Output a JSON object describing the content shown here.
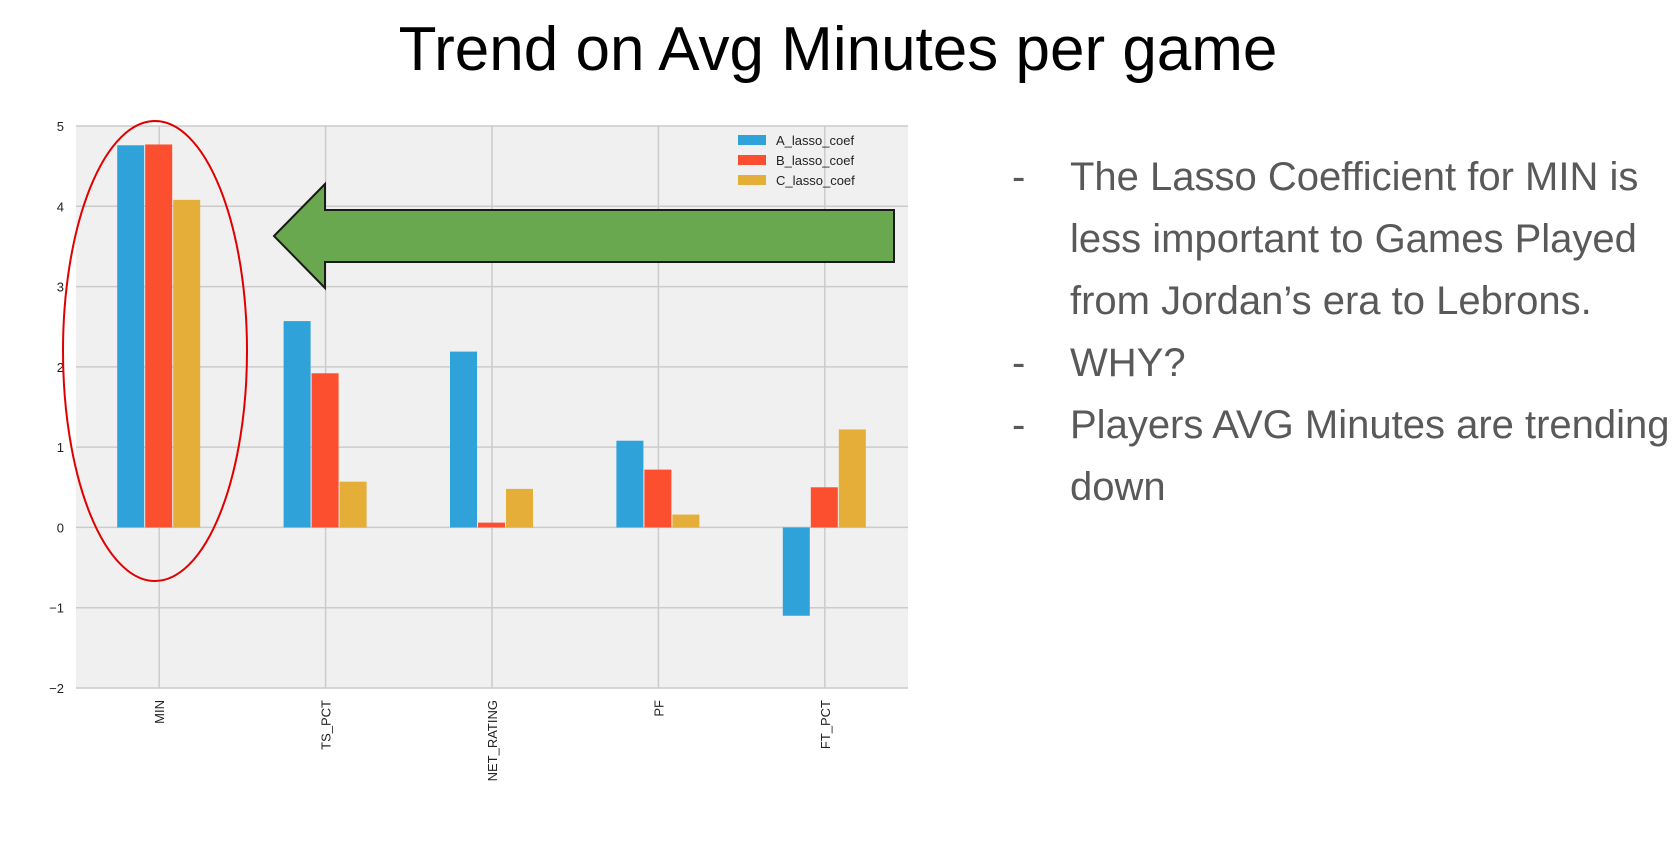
{
  "slide": {
    "title": "Trend on Avg Minutes per game",
    "bullet_marker": "-",
    "bullets": [
      "The Lasso Coefficient for MIN is less important to Games Played from Jordan’s era to Lebrons.",
      "WHY?",
      "Players AVG Minutes are trending down"
    ]
  },
  "annotations": {
    "highlight": "ellipse around MIN bars",
    "arrow": "green arrow pointing left toward MIN",
    "highlight_color": "#e00000",
    "arrow_color": "#6aa84f"
  },
  "chart_data": {
    "type": "bar",
    "categories": [
      "MIN",
      "TS_PCT",
      "NET_RATING",
      "PF",
      "FT_PCT"
    ],
    "series": [
      {
        "name": "A_lasso_coef",
        "color": "#30a2da",
        "values": [
          4.76,
          2.57,
          2.19,
          1.08,
          -1.1
        ]
      },
      {
        "name": "B_lasso_coef",
        "color": "#fc4f30",
        "values": [
          4.77,
          1.92,
          0.06,
          0.72,
          0.5
        ]
      },
      {
        "name": "C_lasso_coef",
        "color": "#e5ae38",
        "values": [
          4.08,
          0.57,
          0.48,
          0.16,
          1.22
        ]
      }
    ],
    "ylim": [
      -2,
      5
    ],
    "yticks": [
      "−2",
      "−1",
      "0",
      "1",
      "2",
      "3",
      "4",
      "5"
    ],
    "grid": true,
    "legend_position": "top-right",
    "background": "#f0f0f0"
  }
}
